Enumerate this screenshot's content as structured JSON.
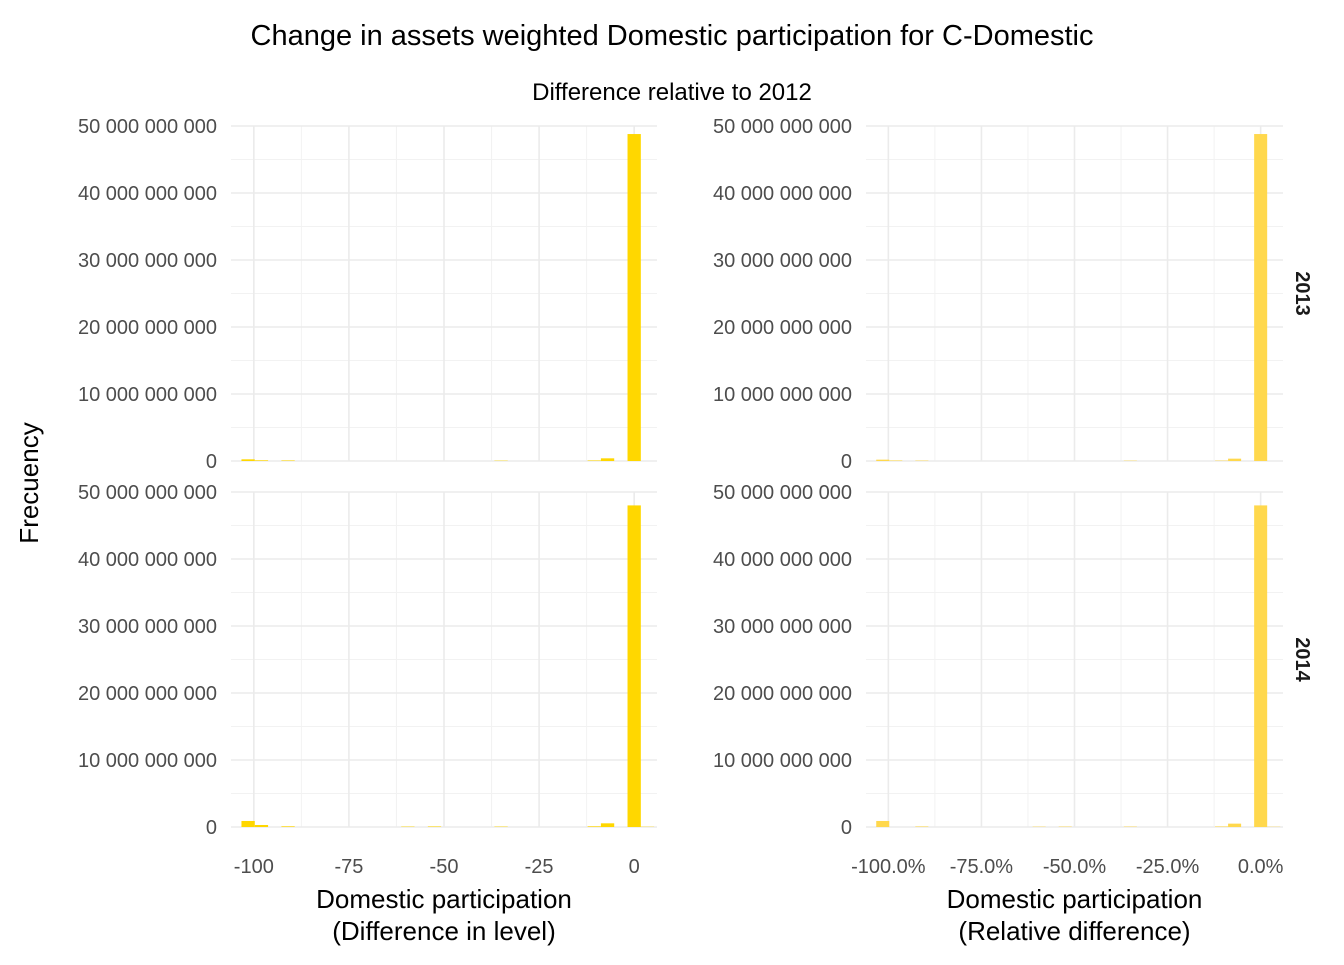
{
  "chart_data": {
    "type": "bar",
    "title": "Change in assets weighted Domestic participation for C-Domestic",
    "subtitle": "Difference relative to 2012",
    "ylabel": "Frecuency",
    "ylim": [
      0,
      50000000000
    ],
    "y_ticks": [
      0,
      10000000000,
      20000000000,
      30000000000,
      40000000000,
      50000000000
    ],
    "y_tick_labels": [
      "0",
      "10 000 000 000",
      "20 000 000 000",
      "30 000 000 000",
      "40 000 000 000",
      "50 000 000 000"
    ],
    "grid": true,
    "bar_colors": {
      "level": "#FFD700",
      "relative": "#FFD84D"
    },
    "columns": [
      {
        "id": "level",
        "xlabel_line1": "Domestic participation",
        "xlabel_line2": "(Difference in level)",
        "xlim": [
          -106,
          6
        ],
        "x_ticks": [
          -100,
          -75,
          -50,
          -25,
          0
        ],
        "x_tick_labels": [
          "-100",
          "-75",
          "-50",
          "-25",
          "0"
        ],
        "bin_width": 3.5
      },
      {
        "id": "relative",
        "xlabel_line1": "Domestic participation",
        "xlabel_line2": "(Relative difference)",
        "xlim": [
          -1.06,
          0.06
        ],
        "x_ticks": [
          -1.0,
          -0.75,
          -0.5,
          -0.25,
          0.0
        ],
        "x_tick_labels": [
          "-100.0%",
          "-75.0%",
          "-50.0%",
          "-25.0%",
          "0.0%"
        ],
        "bin_width": 0.035
      }
    ],
    "rows": [
      {
        "label": "2013"
      },
      {
        "label": "2014"
      }
    ],
    "panels": [
      {
        "row": "2013",
        "column": "level",
        "bins": [
          {
            "x": -101.5,
            "value": 250000000
          },
          {
            "x": -98.0,
            "value": 100000000
          },
          {
            "x": -91.0,
            "value": 80000000
          },
          {
            "x": -35.0,
            "value": 50000000
          },
          {
            "x": -10.5,
            "value": 80000000
          },
          {
            "x": -7.0,
            "value": 400000000
          },
          {
            "x": 0.0,
            "value": 48800000000
          }
        ]
      },
      {
        "row": "2013",
        "column": "relative",
        "bins": [
          {
            "x": -1.015,
            "value": 200000000
          },
          {
            "x": -0.98,
            "value": 80000000
          },
          {
            "x": -0.91,
            "value": 60000000
          },
          {
            "x": -0.35,
            "value": 50000000
          },
          {
            "x": -0.105,
            "value": 60000000
          },
          {
            "x": -0.07,
            "value": 350000000
          },
          {
            "x": 0.0,
            "value": 48800000000
          }
        ]
      },
      {
        "row": "2014",
        "column": "level",
        "bins": [
          {
            "x": -101.5,
            "value": 900000000
          },
          {
            "x": -98.0,
            "value": 300000000
          },
          {
            "x": -91.0,
            "value": 100000000
          },
          {
            "x": -59.5,
            "value": 60000000
          },
          {
            "x": -52.5,
            "value": 80000000
          },
          {
            "x": -35.0,
            "value": 60000000
          },
          {
            "x": -10.5,
            "value": 100000000
          },
          {
            "x": -7.0,
            "value": 550000000
          },
          {
            "x": 0.0,
            "value": 48000000000
          },
          {
            "x": 3.5,
            "value": 40000000
          }
        ]
      },
      {
        "row": "2014",
        "column": "relative",
        "bins": [
          {
            "x": -1.015,
            "value": 900000000
          },
          {
            "x": -0.91,
            "value": 80000000
          },
          {
            "x": -0.595,
            "value": 50000000
          },
          {
            "x": -0.525,
            "value": 60000000
          },
          {
            "x": -0.35,
            "value": 60000000
          },
          {
            "x": -0.105,
            "value": 80000000
          },
          {
            "x": -0.07,
            "value": 500000000
          },
          {
            "x": 0.0,
            "value": 48000000000
          },
          {
            "x": 0.035,
            "value": 40000000
          }
        ]
      }
    ]
  }
}
